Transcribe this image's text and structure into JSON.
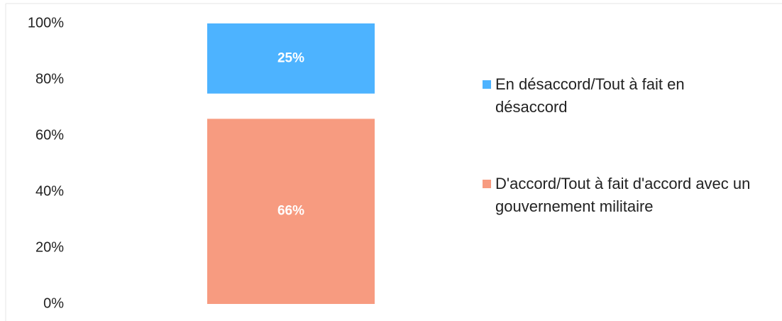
{
  "chart_data": {
    "type": "stacked_bar",
    "categories": [
      null
    ],
    "series": [
      {
        "name": "D'accord/Tout à fait d'accord avec un gouvernement militaire",
        "color": "#f79b80",
        "values": [
          66
        ],
        "value_labels": [
          "66%"
        ]
      },
      {
        "name": "En désaccord/Tout à fait en désaccord",
        "color": "#4db3ff",
        "values": [
          25
        ],
        "value_labels": [
          "25%"
        ]
      }
    ],
    "ylim": [
      0,
      100
    ],
    "yticks": [
      {
        "value": 0,
        "label": "0%"
      },
      {
        "value": 20,
        "label": "20%"
      },
      {
        "value": 40,
        "label": "40%"
      },
      {
        "value": 60,
        "label": "60%"
      },
      {
        "value": 80,
        "label": "80%"
      },
      {
        "value": 100,
        "label": "100%"
      }
    ],
    "grid": false,
    "legend": "right"
  }
}
